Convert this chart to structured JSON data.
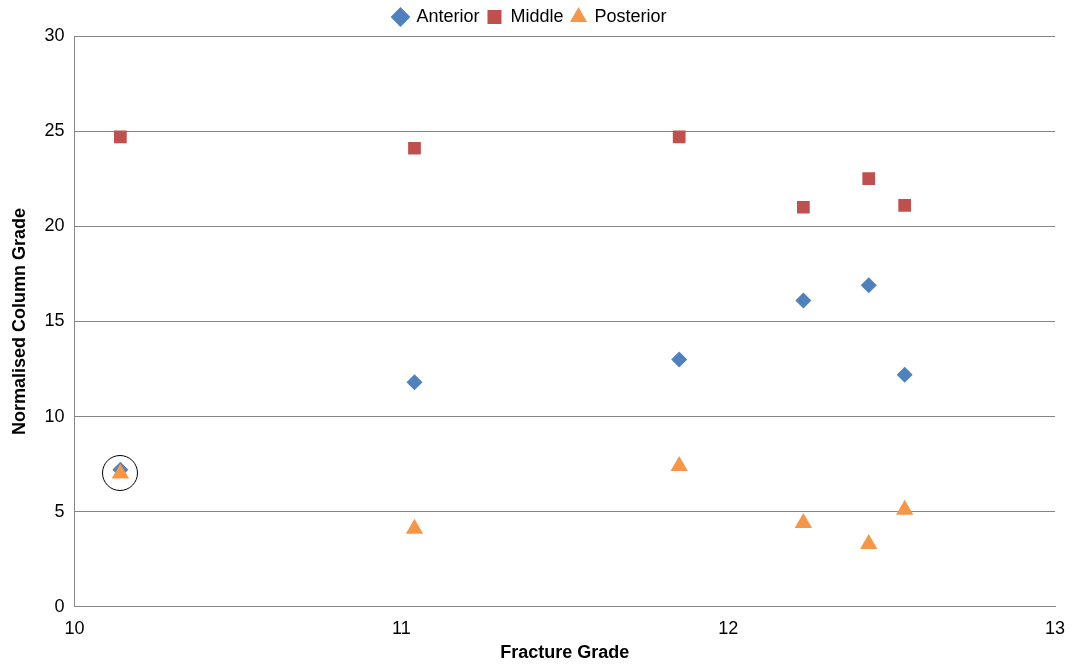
{
  "chart_data": {
    "type": "scatter",
    "xlabel": "Fracture Grade",
    "ylabel": "Normalised Column Grade",
    "x": [
      10.14,
      11.04,
      11.85,
      12.23,
      12.43,
      12.54
    ],
    "series": [
      {
        "name": "Anterior",
        "color": "#4f81bd",
        "marker": "diamond",
        "values": [
          7.2,
          11.8,
          13.0,
          16.1,
          16.9,
          12.2
        ]
      },
      {
        "name": "Middle",
        "color": "#c0504d",
        "marker": "square",
        "values": [
          24.7,
          24.1,
          24.7,
          21.0,
          22.5,
          21.1
        ]
      },
      {
        "name": "Posterior",
        "color": "#f79646",
        "marker": "triangle",
        "values": [
          7.0,
          4.1,
          7.4,
          4.4,
          3.3,
          5.1
        ]
      }
    ],
    "xlim": [
      10,
      13
    ],
    "xticks": [
      10,
      11,
      12,
      13
    ],
    "ylim": [
      0,
      30
    ],
    "yticks": [
      0,
      5,
      10,
      15,
      20,
      25,
      30
    ],
    "grid": "y",
    "legend": "top"
  }
}
